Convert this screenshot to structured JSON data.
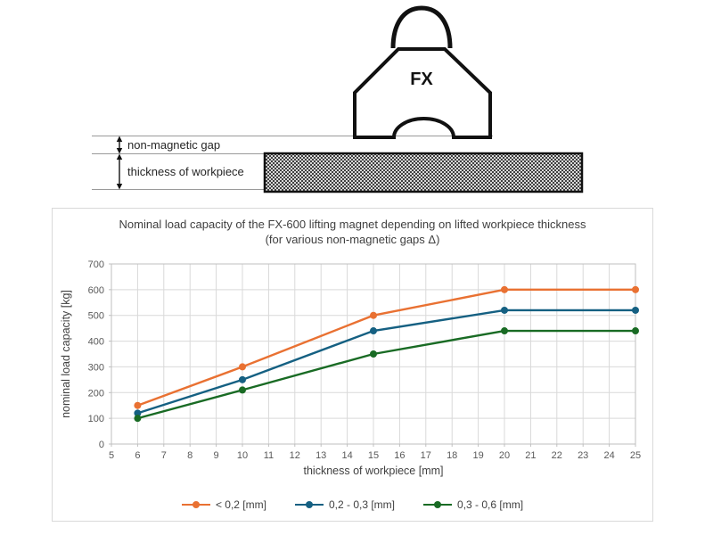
{
  "diagram": {
    "magnet_label": "FX",
    "gap_label": "non-magnetic gap",
    "thickness_label": "thickness of workpiece"
  },
  "chart": {
    "title_line1": "Nominal load capacity of the FX-600 lifting magnet depending on lifted workpiece thickness",
    "title_line2": "(for various non-magnetic gaps Δ)"
  },
  "chart_data": {
    "type": "line",
    "title": "Nominal load capacity of the FX-600 lifting magnet depending on lifted workpiece thickness (for various non-magnetic gaps Δ)",
    "xlabel": "thickness of workpiece [mm]",
    "ylabel": "nominal load capacity [kg]",
    "x": [
      6,
      10,
      15,
      20,
      25
    ],
    "series": [
      {
        "name": "< 0,2 [mm]",
        "color": "#E97132",
        "values": [
          150,
          300,
          500,
          600,
          600
        ]
      },
      {
        "name": "0,2 - 0,3 [mm]",
        "color": "#156082",
        "values": [
          120,
          250,
          440,
          520,
          520
        ]
      },
      {
        "name": "0,3 - 0,6 [mm]",
        "color": "#196B24",
        "values": [
          100,
          210,
          350,
          440,
          440
        ]
      }
    ],
    "xlim": [
      5,
      25
    ],
    "ylim": [
      0,
      700
    ],
    "x_ticks": [
      5,
      6,
      7,
      8,
      9,
      10,
      11,
      12,
      13,
      14,
      15,
      16,
      17,
      18,
      19,
      20,
      21,
      22,
      23,
      24,
      25
    ],
    "y_ticks": [
      0,
      100,
      200,
      300,
      400,
      500,
      600,
      700
    ],
    "grid": true,
    "legend_position": "bottom",
    "grid_color": "#d9d9d9",
    "axis_color": "#bfbfbf"
  }
}
